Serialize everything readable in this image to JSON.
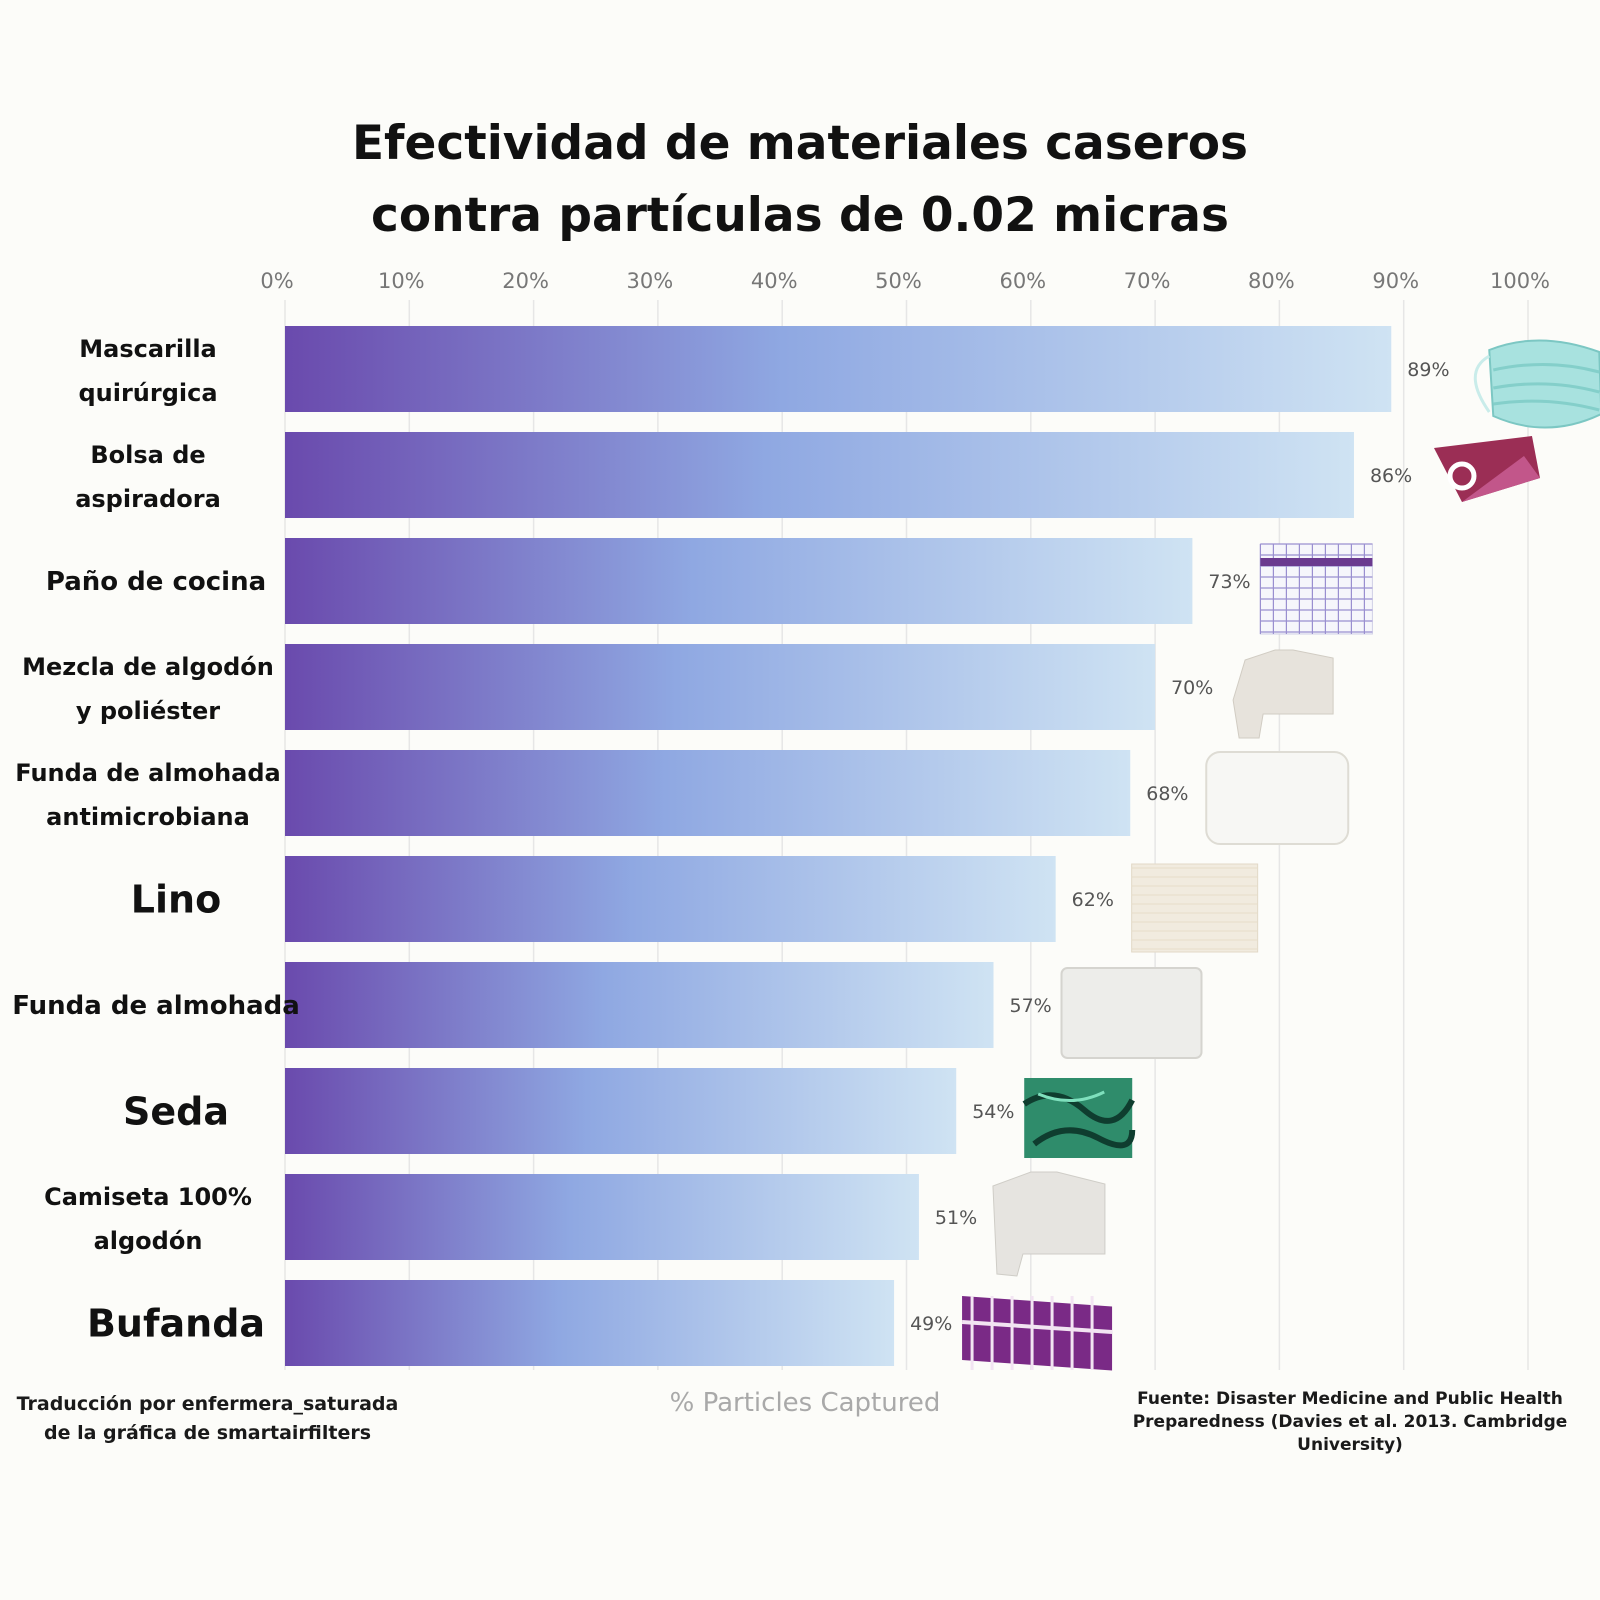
{
  "chart_data": {
    "type": "bar",
    "orientation": "horizontal",
    "title_lines": [
      "Efectividad de materiales caseros",
      "contra partículas de 0.02 micras"
    ],
    "xlabel": "% Particles Captured",
    "ylabel": "",
    "xlim": [
      0,
      100
    ],
    "ticks": [
      "0%",
      "10%",
      "20%",
      "30%",
      "40%",
      "50%",
      "60%",
      "70%",
      "80%",
      "90%",
      "100%"
    ],
    "categories": [
      [
        "Mascarilla",
        "quirúrgica"
      ],
      [
        "Bolsa de",
        "aspiradora"
      ],
      [
        "Paño de cocina"
      ],
      [
        "Mezcla de algodón",
        "y poliéster"
      ],
      [
        "Funda de almohada",
        "antimicrobiana"
      ],
      [
        "Lino"
      ],
      [
        "Funda de almohada"
      ],
      [
        "Seda"
      ],
      [
        "Camiseta 100%",
        "algodón"
      ],
      [
        "Bufanda"
      ]
    ],
    "values": [
      89,
      86,
      73,
      70,
      68,
      62,
      57,
      54,
      51,
      49
    ],
    "value_labels": [
      "89%",
      "86%",
      "73%",
      "70%",
      "68%",
      "62%",
      "57%",
      "54%",
      "51%",
      "49%"
    ],
    "images": [
      "surgical-mask-icon",
      "vacuum-bag-icon",
      "dish-towel-icon",
      "cotton-poly-shirt-icon",
      "antimicrobial-pillowcase-icon",
      "linen-fabric-icon",
      "pillowcase-icon",
      "silk-fabric-icon",
      "cotton-tshirt-icon",
      "plaid-scarf-icon"
    ],
    "colors": {
      "bar_start": "#6a4aad",
      "bar_mid": "#8fa8e2",
      "bar_end": "#cfe3f3",
      "grid": "#e6e6e6"
    },
    "grid": true
  },
  "footer": {
    "credit_lines": [
      "Traducción por enfermera_saturada",
      "de la gráfica de smartairfilters"
    ],
    "source_lines": [
      "Fuente: Disaster Medicine and Public Health",
      "Preparedness (Davies et al. 2013. Cambridge",
      "University)"
    ]
  }
}
